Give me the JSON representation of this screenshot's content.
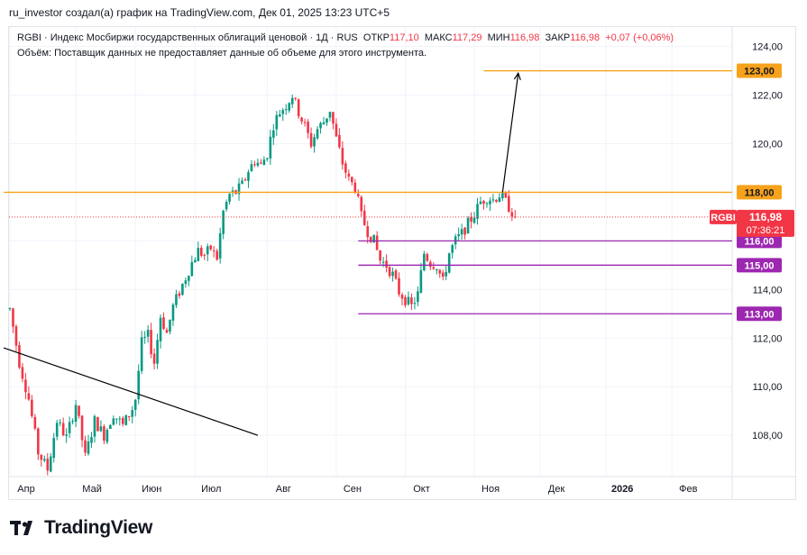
{
  "header": {
    "title": "ru_investor создал(а) график на TradingView.com, Дек 01, 2025 13:23 UTC+5"
  },
  "legend": {
    "symbol": "RGBI",
    "description": "Индекс Мосбиржи государственных облигаций ценовой",
    "interval": "1Д",
    "exchange": "RUS",
    "open_label": "ОТКР",
    "open": "117,10",
    "high_label": "МАКС",
    "high": "117,29",
    "low_label": "МИН",
    "low": "116,98",
    "close_label": "ЗАКР",
    "close": "116,98",
    "change": "+0,07 (+0,06%)",
    "volume_note": "Объём: Поставщик данных не предоставляет данные об объеме для этого инструмента."
  },
  "brand": {
    "logo_text": "TradingView"
  },
  "colors": {
    "up": "#089981",
    "down": "#f23645",
    "orange": "#f7a21b",
    "purple": "#9c27b0",
    "trend": "#000000",
    "grid": "#f0f3fa",
    "text": "#131722"
  },
  "chart_data": {
    "type": "candlestick",
    "symbol": "RGBI",
    "y_axis": {
      "range": [
        106.3,
        124.8
      ],
      "ticks": [
        "124,00",
        "122,00",
        "120,00",
        "118,00",
        "116,00",
        "114,00",
        "112,00",
        "110,00",
        "108,00"
      ],
      "tick_values": [
        124,
        122,
        120,
        118,
        116,
        114,
        112,
        110,
        108
      ]
    },
    "x_axis": {
      "labels": [
        "Апр",
        "Май",
        "Июн",
        "Июл",
        "Авг",
        "Сен",
        "Окт",
        "Ноя",
        "Дек",
        "2026",
        "Фев"
      ],
      "label_days": [
        0,
        21,
        40,
        59,
        82,
        104,
        126,
        148,
        169,
        190,
        211
      ],
      "bold": [
        "2026"
      ]
    },
    "price_points": [
      [
        0,
        113.2
      ],
      [
        3,
        111.0
      ],
      [
        6,
        109.5
      ],
      [
        9,
        107.3
      ],
      [
        12,
        106.6
      ],
      [
        15,
        108.6
      ],
      [
        18,
        107.9
      ],
      [
        21,
        109.3
      ],
      [
        24,
        107.1
      ],
      [
        27,
        108.6
      ],
      [
        30,
        108.0
      ],
      [
        33,
        108.9
      ],
      [
        36,
        108.4
      ],
      [
        39,
        109.1
      ],
      [
        40,
        109.5
      ],
      [
        42,
        111.8
      ],
      [
        44,
        112.1
      ],
      [
        46,
        111.0
      ],
      [
        48,
        112.9
      ],
      [
        50,
        112.2
      ],
      [
        52,
        113.3
      ],
      [
        54,
        113.9
      ],
      [
        56,
        114.5
      ],
      [
        58,
        115.1
      ],
      [
        60,
        115.6
      ],
      [
        62,
        115.4
      ],
      [
        64,
        115.7
      ],
      [
        66,
        115.3
      ],
      [
        68,
        117.2
      ],
      [
        70,
        117.9
      ],
      [
        72,
        118.0
      ],
      [
        74,
        118.3
      ],
      [
        76,
        118.9
      ],
      [
        78,
        119.3
      ],
      [
        80,
        119.1
      ],
      [
        82,
        119.6
      ],
      [
        84,
        120.8
      ],
      [
        86,
        121.3
      ],
      [
        88,
        121.6
      ],
      [
        90,
        122.0
      ],
      [
        92,
        121.3
      ],
      [
        94,
        120.7
      ],
      [
        96,
        120.0
      ],
      [
        98,
        120.6
      ],
      [
        100,
        120.9
      ],
      [
        102,
        121.4
      ],
      [
        104,
        120.2
      ],
      [
        106,
        119.2
      ],
      [
        108,
        118.5
      ],
      [
        110,
        118.2
      ],
      [
        112,
        117.0
      ],
      [
        114,
        116.4
      ],
      [
        116,
        116.0
      ],
      [
        118,
        115.2
      ],
      [
        120,
        115.0
      ],
      [
        122,
        114.6
      ],
      [
        124,
        113.9
      ],
      [
        126,
        113.6
      ],
      [
        128,
        113.3
      ],
      [
        130,
        113.8
      ],
      [
        132,
        115.5
      ],
      [
        134,
        115.1
      ],
      [
        136,
        115.0
      ],
      [
        138,
        114.3
      ],
      [
        140,
        115.5
      ],
      [
        142,
        116.0
      ],
      [
        144,
        116.3
      ],
      [
        146,
        116.7
      ],
      [
        148,
        117.1
      ],
      [
        150,
        117.6
      ],
      [
        152,
        117.8
      ],
      [
        154,
        117.7
      ],
      [
        156,
        117.9
      ],
      [
        158,
        117.6
      ],
      [
        160,
        117.2
      ],
      [
        161,
        116.98
      ]
    ],
    "last_price": "116,98",
    "countdown": "07:36:21",
    "levels": [
      {
        "value": 123.0,
        "label": "123,00",
        "color": "orange",
        "start_day": 151
      },
      {
        "value": 118.0,
        "label": "118,00",
        "color": "orange",
        "start_day": -2
      },
      {
        "value": 116.0,
        "label": "116,00",
        "color": "purple",
        "start_day": 111
      },
      {
        "value": 115.0,
        "label": "115,00",
        "color": "purple",
        "start_day": 111
      },
      {
        "value": 113.0,
        "label": "113,00",
        "color": "purple",
        "start_day": 111
      }
    ],
    "trendline": {
      "from": [
        -2,
        111.6
      ],
      "to": [
        79,
        108.0
      ]
    },
    "arrow": {
      "from": [
        157,
        118.0
      ],
      "to": [
        162,
        122.9
      ]
    }
  }
}
